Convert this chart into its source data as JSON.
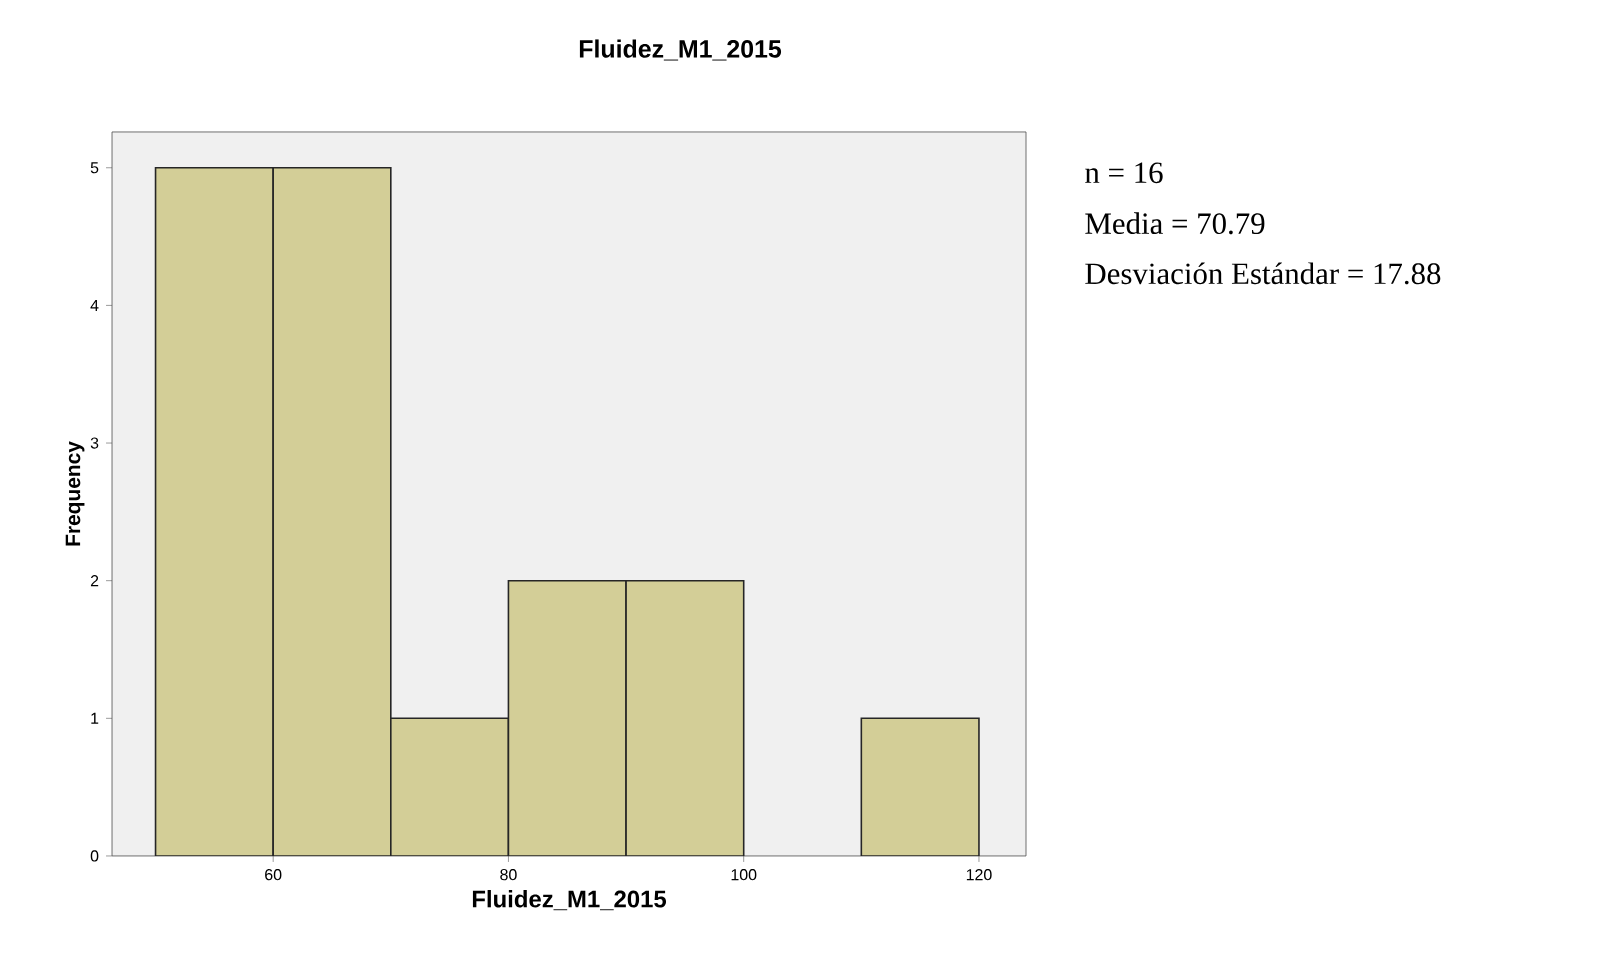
{
  "chart_data": {
    "type": "histogram",
    "title": "Fluidez_M1_2015",
    "xlabel": "Fluidez_M1_2015",
    "ylabel": "Frequency",
    "bins": [
      50,
      60,
      70,
      80,
      90,
      100,
      110,
      120
    ],
    "values": [
      5,
      5,
      1,
      2,
      2,
      0,
      1
    ],
    "color": "#d3ce97",
    "xlim": [
      46.3,
      124
    ],
    "ylim": [
      0,
      5.26
    ],
    "xticks": [
      60,
      80,
      100,
      120
    ],
    "yticks": [
      0,
      1,
      2,
      3,
      4,
      5
    ],
    "annotations": [
      "n = 16",
      "Media = 70.79",
      "Desviación Estándar = 17.88"
    ]
  }
}
